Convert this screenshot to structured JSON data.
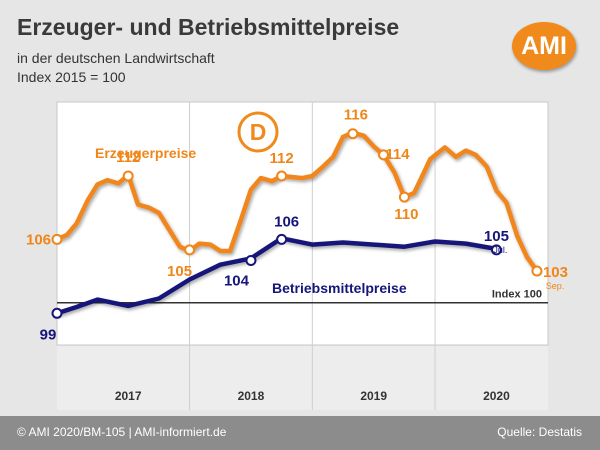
{
  "header": {
    "title": "Erzeuger- und Betriebsmittelpreise",
    "subtitle_line1": "in der deutschen Landwirtschaft",
    "subtitle_line2": "Index 2015 = 100",
    "logo_text": "AMI"
  },
  "footer": {
    "left": "© AMI 2020/BM-105 | AMI-informiert.de",
    "right": "Quelle: Destatis"
  },
  "colors": {
    "erzeuger": "#f0861a",
    "betriebsmittel": "#16157a",
    "logo": "#f08a1c",
    "badge": "#f08a1c"
  },
  "chart_data": {
    "type": "line",
    "badge_text": "D",
    "reference": {
      "value": 100,
      "label": "Index 100"
    },
    "x_axis": {
      "start": 2016.92,
      "end": 2020.92,
      "year_labels": [
        {
          "label": "2017",
          "center": 2017.5
        },
        {
          "label": "2018",
          "center": 2018.5
        },
        {
          "label": "2019",
          "center": 2019.5
        },
        {
          "label": "2020",
          "center": 2020.5
        }
      ],
      "year_boundaries": [
        2018,
        2019,
        2020
      ]
    },
    "y_axis": {
      "min": 96,
      "max": 119
    },
    "series": [
      {
        "name": "Erzeugerpreise",
        "points": [
          [
            2016.92,
            106.0
          ],
          [
            2017.0,
            106.4
          ],
          [
            2017.08,
            107.5
          ],
          [
            2017.17,
            109.7
          ],
          [
            2017.25,
            111.2
          ],
          [
            2017.33,
            111.6
          ],
          [
            2017.42,
            111.3
          ],
          [
            2017.5,
            112.1
          ],
          [
            2017.58,
            109.3
          ],
          [
            2017.67,
            109.0
          ],
          [
            2017.75,
            108.5
          ],
          [
            2017.83,
            107.0
          ],
          [
            2017.92,
            105.3
          ],
          [
            2018.0,
            104.9
          ],
          [
            2018.08,
            105.6
          ],
          [
            2018.17,
            105.5
          ],
          [
            2018.25,
            104.9
          ],
          [
            2018.33,
            104.9
          ],
          [
            2018.42,
            107.9
          ],
          [
            2018.5,
            110.7
          ],
          [
            2018.58,
            111.8
          ],
          [
            2018.67,
            111.5
          ],
          [
            2018.75,
            112.0
          ],
          [
            2018.83,
            111.9
          ],
          [
            2018.92,
            111.8
          ],
          [
            2019.0,
            112.0
          ],
          [
            2019.08,
            112.8
          ],
          [
            2019.17,
            113.8
          ],
          [
            2019.25,
            115.7
          ],
          [
            2019.33,
            116.1
          ],
          [
            2019.42,
            115.8
          ],
          [
            2019.5,
            114.8
          ],
          [
            2019.58,
            114.0
          ],
          [
            2019.67,
            112.3
          ],
          [
            2019.75,
            110.0
          ],
          [
            2019.83,
            110.4
          ],
          [
            2019.92,
            112.6
          ],
          [
            2019.96,
            113.6
          ],
          [
            2020.08,
            114.7
          ],
          [
            2020.17,
            113.8
          ],
          [
            2020.25,
            114.4
          ],
          [
            2020.33,
            114.0
          ],
          [
            2020.42,
            112.9
          ],
          [
            2020.5,
            110.6
          ],
          [
            2020.58,
            109.5
          ],
          [
            2020.67,
            106.3
          ],
          [
            2020.75,
            104.3
          ],
          [
            2020.83,
            103.0
          ]
        ]
      },
      {
        "name": "Betriebsmittelpreise",
        "points": [
          [
            2016.92,
            99.0
          ],
          [
            2017.08,
            99.6
          ],
          [
            2017.25,
            100.3
          ],
          [
            2017.5,
            99.7
          ],
          [
            2017.75,
            100.4
          ],
          [
            2018.0,
            102.2
          ],
          [
            2018.25,
            103.6
          ],
          [
            2018.5,
            104.2
          ],
          [
            2018.75,
            106.1
          ],
          [
            2019.0,
            105.5
          ],
          [
            2019.25,
            105.7
          ],
          [
            2019.5,
            105.5
          ],
          [
            2019.75,
            105.3
          ],
          [
            2020.0,
            105.8
          ],
          [
            2020.25,
            105.6
          ],
          [
            2020.5,
            105.1
          ]
        ]
      }
    ],
    "data_labels": [
      {
        "series": "Erzeugerpreise",
        "x": 2016.92,
        "y": 106,
        "text": "106"
      },
      {
        "series": "Erzeugerpreise",
        "x": 2017.5,
        "y": 112,
        "text": "112"
      },
      {
        "series": "Erzeugerpreise",
        "x": 2018.0,
        "y": 105,
        "text": "105"
      },
      {
        "series": "Erzeugerpreise",
        "x": 2018.75,
        "y": 112,
        "text": "112"
      },
      {
        "series": "Erzeugerpreise",
        "x": 2019.33,
        "y": 116,
        "text": "116"
      },
      {
        "series": "Erzeugerpreise",
        "x": 2019.58,
        "y": 114,
        "text": "114"
      },
      {
        "series": "Erzeugerpreise",
        "x": 2019.75,
        "y": 110,
        "text": "110"
      },
      {
        "series": "Erzeugerpreise",
        "x": 2020.83,
        "y": 103,
        "text": "103",
        "sub": "Sep."
      },
      {
        "series": "Betriebsmittelpreise",
        "x": 2016.92,
        "y": 99,
        "text": "99"
      },
      {
        "series": "Betriebsmittelpreise",
        "x": 2018.5,
        "y": 104,
        "text": "104"
      },
      {
        "series": "Betriebsmittelpreise",
        "x": 2018.75,
        "y": 106,
        "text": "106"
      },
      {
        "series": "Betriebsmittelpreise",
        "x": 2020.5,
        "y": 105,
        "text": "105",
        "sub": "Jul."
      }
    ]
  }
}
